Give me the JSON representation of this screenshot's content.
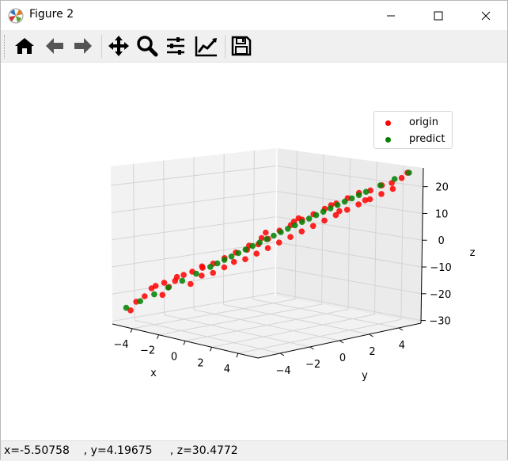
{
  "window": {
    "title": "Figure 2",
    "icon": "matplotlib-icon",
    "controls": [
      "minimize-icon",
      "maximize-icon",
      "close-icon"
    ]
  },
  "toolbar": {
    "buttons": [
      {
        "icon": "home-icon",
        "tooltip": "Reset original view"
      },
      {
        "icon": "back-arrow-icon",
        "tooltip": "Back"
      },
      {
        "icon": "forward-arrow-icon",
        "tooltip": "Forward"
      },
      {
        "icon": "pan-icon",
        "tooltip": "Pan"
      },
      {
        "icon": "zoom-icon",
        "tooltip": "Zoom"
      },
      {
        "icon": "subplots-icon",
        "tooltip": "Configure subplots"
      },
      {
        "icon": "edit-curve-icon",
        "tooltip": "Edit axis"
      },
      {
        "icon": "save-icon",
        "tooltip": "Save"
      }
    ]
  },
  "status": {
    "text": "x=-5.50758    , y=4.19675     , z=30.4772"
  },
  "legend": {
    "entries": [
      {
        "label": "origin",
        "color": "#ff0000"
      },
      {
        "label": "predict",
        "color": "#008000"
      }
    ]
  },
  "chart_data": {
    "type": "scatter",
    "projection": "3d",
    "xlabel": "x",
    "ylabel": "y",
    "zlabel": "z",
    "xticks": [
      "−4",
      "−2",
      "0",
      "2",
      "4"
    ],
    "yticks": [
      "−4",
      "−2",
      "0",
      "2",
      "4"
    ],
    "zticks": [
      "20",
      "10",
      "0",
      "−10",
      "−20",
      "−30"
    ],
    "xlim": [
      -5.5,
      5.5
    ],
    "ylim": [
      -5.5,
      5.5
    ],
    "zlim": [
      -31,
      27
    ],
    "series": [
      {
        "name": "origin",
        "color": "#ff0000",
        "points": [
          [
            -4.9,
            -4.8,
            -26
          ],
          [
            -4.8,
            -4.5,
            -23
          ],
          [
            -4.5,
            -4.2,
            -21
          ],
          [
            -4.2,
            -4.0,
            -18
          ],
          [
            -4.0,
            -3.9,
            -17
          ],
          [
            -3.8,
            -3.5,
            -16
          ],
          [
            -3.6,
            -3.8,
            -20
          ],
          [
            -3.4,
            -3.0,
            -14
          ],
          [
            -3.2,
            -3.3,
            -15
          ],
          [
            -3.0,
            -2.9,
            -13
          ],
          [
            -2.8,
            -2.5,
            -12
          ],
          [
            -2.6,
            -2.8,
            -16
          ],
          [
            -2.4,
            -2.2,
            -10
          ],
          [
            -2.2,
            -2.4,
            -13
          ],
          [
            -2.0,
            -1.8,
            -9
          ],
          [
            -1.8,
            -2.0,
            -12
          ],
          [
            -1.6,
            -1.4,
            -7
          ],
          [
            -1.4,
            -1.6,
            -10
          ],
          [
            -1.2,
            -1.0,
            -5
          ],
          [
            -1.0,
            -1.3,
            -8
          ],
          [
            -0.8,
            -0.6,
            -4
          ],
          [
            -0.6,
            -0.9,
            -7
          ],
          [
            -0.4,
            -0.2,
            -2
          ],
          [
            -0.2,
            -0.5,
            -5
          ],
          [
            0.0,
            0.1,
            0
          ],
          [
            0.2,
            -0.1,
            -3
          ],
          [
            0.4,
            0.5,
            3
          ],
          [
            0.6,
            0.3,
            -1
          ],
          [
            0.8,
            0.9,
            5
          ],
          [
            1.0,
            0.7,
            1
          ],
          [
            1.2,
            1.3,
            7
          ],
          [
            1.4,
            1.1,
            3
          ],
          [
            1.6,
            1.7,
            9
          ],
          [
            1.8,
            1.5,
            5
          ],
          [
            2.0,
            2.1,
            11
          ],
          [
            2.2,
            1.9,
            7
          ],
          [
            2.4,
            2.5,
            13
          ],
          [
            2.6,
            2.3,
            9
          ],
          [
            2.8,
            2.9,
            15
          ],
          [
            3.0,
            2.7,
            11
          ],
          [
            3.2,
            3.3,
            17
          ],
          [
            3.4,
            3.1,
            13
          ],
          [
            3.6,
            3.7,
            18
          ],
          [
            3.8,
            3.5,
            15
          ],
          [
            4.0,
            4.1,
            20
          ],
          [
            4.2,
            3.9,
            17
          ],
          [
            4.4,
            4.4,
            21
          ],
          [
            4.6,
            4.3,
            19
          ],
          [
            4.8,
            4.7,
            23
          ],
          [
            5.0,
            4.9,
            25
          ],
          [
            -0.3,
            0.2,
            2
          ],
          [
            0.7,
            1.2,
            6
          ],
          [
            1.5,
            0.8,
            8
          ],
          [
            2.3,
            2.8,
            10
          ],
          [
            -1.1,
            -0.2,
            -3
          ],
          [
            -2.7,
            -1.9,
            -11
          ],
          [
            3.1,
            3.8,
            14
          ],
          [
            -3.9,
            -3.1,
            -18
          ],
          [
            0.3,
            -0.6,
            1
          ],
          [
            1.9,
            2.6,
            12
          ]
        ]
      },
      {
        "name": "predict",
        "color": "#008000",
        "points": [
          [
            -5.0,
            -5.0,
            -25
          ],
          [
            -4.5,
            -4.5,
            -22.5
          ],
          [
            -4.0,
            -4.0,
            -20
          ],
          [
            -3.5,
            -3.5,
            -17.5
          ],
          [
            -3.0,
            -3.0,
            -15
          ],
          [
            -2.5,
            -2.5,
            -12.5
          ],
          [
            -2.0,
            -2.0,
            -10
          ],
          [
            -1.75,
            -1.75,
            -8.75
          ],
          [
            -1.5,
            -1.5,
            -7.5
          ],
          [
            -1.25,
            -1.25,
            -6.25
          ],
          [
            -1.0,
            -1.0,
            -5
          ],
          [
            -0.75,
            -0.75,
            -3.75
          ],
          [
            -0.5,
            -0.5,
            -2.5
          ],
          [
            -0.25,
            -0.25,
            -1.25
          ],
          [
            0.0,
            0.0,
            0
          ],
          [
            0.25,
            0.25,
            1.25
          ],
          [
            0.5,
            0.5,
            2.5
          ],
          [
            0.75,
            0.75,
            3.75
          ],
          [
            1.0,
            1.0,
            5
          ],
          [
            1.25,
            1.25,
            6.25
          ],
          [
            1.5,
            1.5,
            7.5
          ],
          [
            1.75,
            1.75,
            8.75
          ],
          [
            2.0,
            2.0,
            10
          ],
          [
            2.25,
            2.25,
            11.25
          ],
          [
            2.5,
            2.5,
            12.5
          ],
          [
            2.75,
            2.75,
            13.75
          ],
          [
            3.0,
            3.0,
            15
          ],
          [
            3.25,
            3.25,
            16.25
          ],
          [
            3.5,
            3.5,
            17.5
          ],
          [
            4.0,
            4.0,
            20
          ],
          [
            4.5,
            4.5,
            22.5
          ],
          [
            5.0,
            5.0,
            25
          ]
        ]
      }
    ],
    "grid": true,
    "legend_position": "top-right"
  }
}
